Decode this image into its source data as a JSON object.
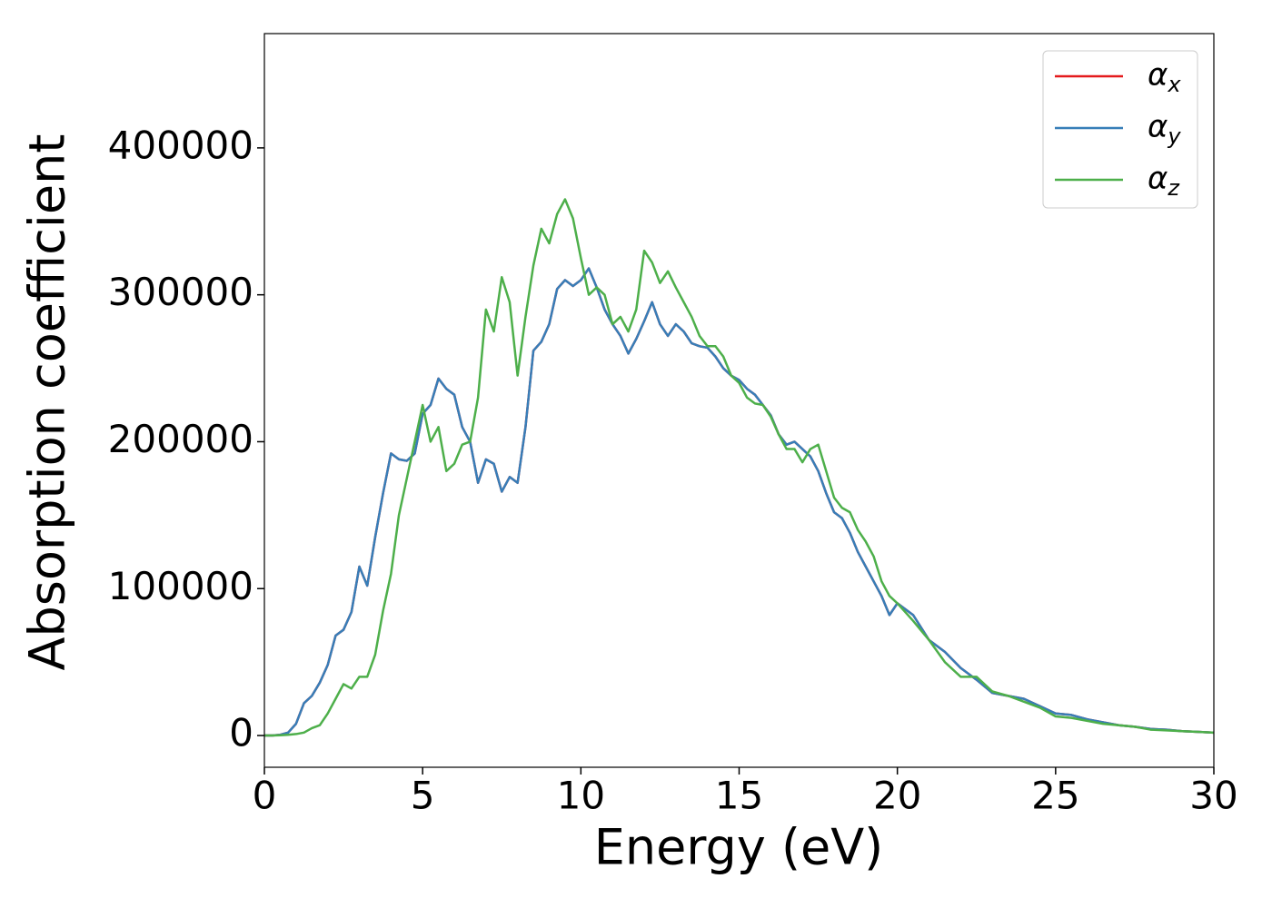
{
  "chart_data": {
    "type": "line",
    "xlabel": "Energy (eV)",
    "ylabel": "Absorption coefficient",
    "x": [
      0,
      0.25,
      0.5,
      0.75,
      1,
      1.25,
      1.5,
      1.75,
      2,
      2.25,
      2.5,
      2.75,
      3,
      3.25,
      3.5,
      3.75,
      4,
      4.25,
      4.5,
      4.75,
      5,
      5.25,
      5.5,
      5.75,
      6,
      6.25,
      6.5,
      6.75,
      7,
      7.25,
      7.5,
      7.75,
      8,
      8.25,
      8.5,
      8.75,
      9,
      9.25,
      9.5,
      9.75,
      10,
      10.25,
      10.5,
      10.75,
      11,
      11.25,
      11.5,
      11.75,
      12,
      12.25,
      12.5,
      12.75,
      13,
      13.25,
      13.5,
      13.75,
      14,
      14.25,
      14.5,
      14.75,
      15,
      15.25,
      15.5,
      15.75,
      16,
      16.25,
      16.5,
      16.75,
      17,
      17.25,
      17.5,
      17.75,
      18,
      18.25,
      18.5,
      18.75,
      19,
      19.25,
      19.5,
      19.75,
      20,
      20.5,
      21,
      21.5,
      22,
      22.5,
      23,
      23.5,
      24,
      24.5,
      25,
      25.5,
      26,
      26.5,
      27,
      27.5,
      28,
      28.5,
      29,
      29.5,
      30
    ],
    "series": [
      {
        "name": "αx",
        "color": "#e41a1c",
        "values": [
          0,
          0,
          500,
          2000,
          8000,
          22000,
          27000,
          36000,
          48000,
          68000,
          72000,
          84000,
          115000,
          102000,
          135000,
          165000,
          192000,
          188000,
          187000,
          192000,
          219000,
          225000,
          243000,
          236000,
          232000,
          210000,
          200000,
          172000,
          188000,
          185000,
          166000,
          176000,
          172000,
          210000,
          262000,
          268000,
          280000,
          304000,
          310000,
          306000,
          310000,
          318000,
          305000,
          290000,
          280000,
          272000,
          260000,
          270000,
          282000,
          295000,
          280000,
          272000,
          280000,
          275000,
          267000,
          265000,
          264000,
          258000,
          250000,
          245000,
          242000,
          236000,
          232000,
          225000,
          218000,
          205000,
          198000,
          200000,
          195000,
          190000,
          180000,
          165000,
          152000,
          148000,
          138000,
          125000,
          115000,
          105000,
          95000,
          82000,
          90000,
          82000,
          65000,
          57000,
          46000,
          38000,
          29000,
          27000,
          25000,
          20000,
          15000,
          14000,
          11000,
          9000,
          7000,
          6000,
          4500,
          4000,
          3000,
          2500,
          2000
        ]
      },
      {
        "name": "αy",
        "color": "#377eb8",
        "values": [
          0,
          0,
          500,
          2000,
          8000,
          22000,
          27000,
          36000,
          48000,
          68000,
          72000,
          84000,
          115000,
          102000,
          135000,
          165000,
          192000,
          188000,
          187000,
          192000,
          219000,
          225000,
          243000,
          236000,
          232000,
          210000,
          200000,
          172000,
          188000,
          185000,
          166000,
          176000,
          172000,
          210000,
          262000,
          268000,
          280000,
          304000,
          310000,
          306000,
          310000,
          318000,
          305000,
          290000,
          280000,
          272000,
          260000,
          270000,
          282000,
          295000,
          280000,
          272000,
          280000,
          275000,
          267000,
          265000,
          264000,
          258000,
          250000,
          245000,
          242000,
          236000,
          232000,
          225000,
          218000,
          205000,
          198000,
          200000,
          195000,
          190000,
          180000,
          165000,
          152000,
          148000,
          138000,
          125000,
          115000,
          105000,
          95000,
          82000,
          90000,
          82000,
          65000,
          57000,
          46000,
          38000,
          29000,
          27000,
          25000,
          20000,
          15000,
          14000,
          11000,
          9000,
          7000,
          6000,
          4500,
          4000,
          3000,
          2500,
          2000
        ]
      },
      {
        "name": "αz",
        "color": "#4daf4a",
        "values": [
          0,
          0,
          200,
          500,
          1000,
          2000,
          5000,
          7000,
          15000,
          25000,
          35000,
          32000,
          40000,
          40000,
          55000,
          85000,
          110000,
          150000,
          175000,
          200000,
          225000,
          200000,
          210000,
          180000,
          185000,
          198000,
          200000,
          230000,
          290000,
          275000,
          312000,
          295000,
          245000,
          285000,
          320000,
          345000,
          335000,
          355000,
          365000,
          352000,
          325000,
          300000,
          305000,
          300000,
          280000,
          285000,
          275000,
          290000,
          330000,
          322000,
          308000,
          316000,
          305000,
          295000,
          285000,
          272000,
          265000,
          265000,
          258000,
          245000,
          240000,
          230000,
          226000,
          225000,
          217000,
          205000,
          195000,
          195000,
          186000,
          195000,
          198000,
          180000,
          162000,
          155000,
          152000,
          140000,
          132000,
          122000,
          105000,
          95000,
          90000,
          78000,
          65000,
          50000,
          40000,
          40000,
          30000,
          27000,
          23000,
          19000,
          13000,
          12000,
          10000,
          8000,
          7000,
          6000,
          4000,
          3500,
          3000,
          2500,
          2000
        ]
      }
    ],
    "xlim": [
      0,
      30
    ],
    "xticks": [
      0,
      5,
      10,
      15,
      20,
      25,
      30
    ],
    "ylim": [
      -21600,
      477800
    ],
    "yticks": [
      0,
      100000,
      200000,
      300000,
      400000
    ],
    "legend": "upper right",
    "grid": false
  }
}
